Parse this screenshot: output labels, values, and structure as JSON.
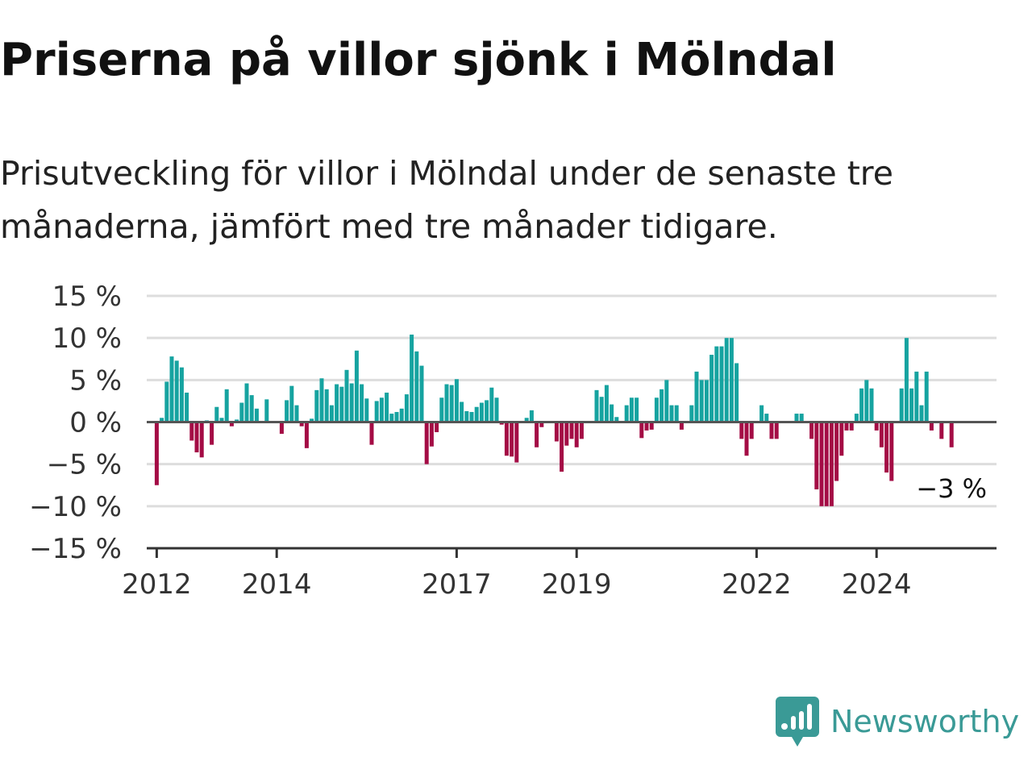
{
  "title": "Priserna på villor sjönk i Mölndal",
  "subtitle": "Prisutveckling för villor i Mölndal under de senaste tre månaderna, jämfört med tre månader tidigare.",
  "brand": {
    "name": "Newsworthy",
    "icon": "newsworthy-logo-icon",
    "color": "#3a9a96"
  },
  "colors": {
    "positive": "#16a3a0",
    "negative": "#a40c45",
    "zero_line": "#555555",
    "grid": "#dddddd"
  },
  "chart_data": {
    "type": "bar",
    "x_axis": {
      "type": "time",
      "start": "2011-11",
      "end": "2026-01",
      "tick_labels": [
        "2012",
        "2014",
        "2017",
        "2019",
        "2022",
        "2024"
      ]
    },
    "y_axis": {
      "ylim": [
        -15,
        15
      ],
      "ticks": [
        15,
        10,
        5,
        0,
        -5,
        -10,
        -15
      ],
      "tick_labels": [
        "15 %",
        "10 %",
        "5 %",
        "0 %",
        "−5 %",
        "−10 %",
        "−15 %"
      ]
    },
    "grid": true,
    "legend": "none",
    "start_month": "2012-01",
    "values": [
      -7.5,
      0.5,
      4.8,
      7.8,
      7.3,
      6.5,
      3.5,
      -2.2,
      -3.6,
      -4.2,
      0.2,
      -2.7,
      1.8,
      0.5,
      3.9,
      -0.5,
      0.3,
      2.3,
      4.6,
      3.2,
      1.6,
      0,
      2.7,
      0,
      0,
      -1.4,
      2.6,
      4.3,
      2.0,
      -0.5,
      -3.1,
      0.4,
      3.8,
      5.2,
      3.9,
      2.0,
      4.5,
      4.2,
      6.2,
      4.6,
      8.5,
      4.5,
      2.8,
      -2.7,
      2.5,
      2.9,
      3.5,
      1.0,
      1.2,
      1.6,
      3.3,
      10.4,
      8.4,
      6.7,
      -5.0,
      -2.9,
      -1.2,
      2.9,
      4.5,
      4.4,
      5.1,
      2.4,
      1.3,
      1.2,
      1.8,
      2.3,
      2.6,
      4.1,
      2.9,
      -0.3,
      -4.0,
      -4.1,
      -4.8,
      0,
      0.5,
      1.4,
      -3.0,
      -0.6,
      0,
      0,
      -2.3,
      -5.9,
      -2.8,
      -2.0,
      -3.0,
      -2.0,
      0,
      0,
      3.8,
      3.0,
      4.4,
      2.1,
      0.6,
      0,
      2.0,
      2.9,
      2.9,
      -1.9,
      -1.0,
      -0.9,
      2.9,
      3.9,
      5.0,
      2.0,
      2.0,
      -0.9,
      0,
      2.0,
      6.0,
      5.0,
      5.0,
      8.0,
      9.0,
      9.0,
      10.0,
      10.0,
      7.0,
      -2.0,
      -4.0,
      -2.0,
      0,
      2.0,
      1.0,
      -2.0,
      -2.0,
      0,
      0,
      0,
      1.0,
      1.0,
      0,
      -2.0,
      -8.0,
      -10.0,
      -10.0,
      -10.0,
      -7.0,
      -4.0,
      -1.0,
      -1.0,
      1.0,
      4.0,
      5.0,
      4.0,
      -1.0,
      -3.0,
      -6.0,
      -7.0,
      0,
      4.0,
      10.0,
      4.0,
      6.0,
      2.0,
      6.0,
      -1.0,
      0,
      -2.0,
      0,
      -3.0
    ],
    "last_value_label": "−3 %"
  }
}
